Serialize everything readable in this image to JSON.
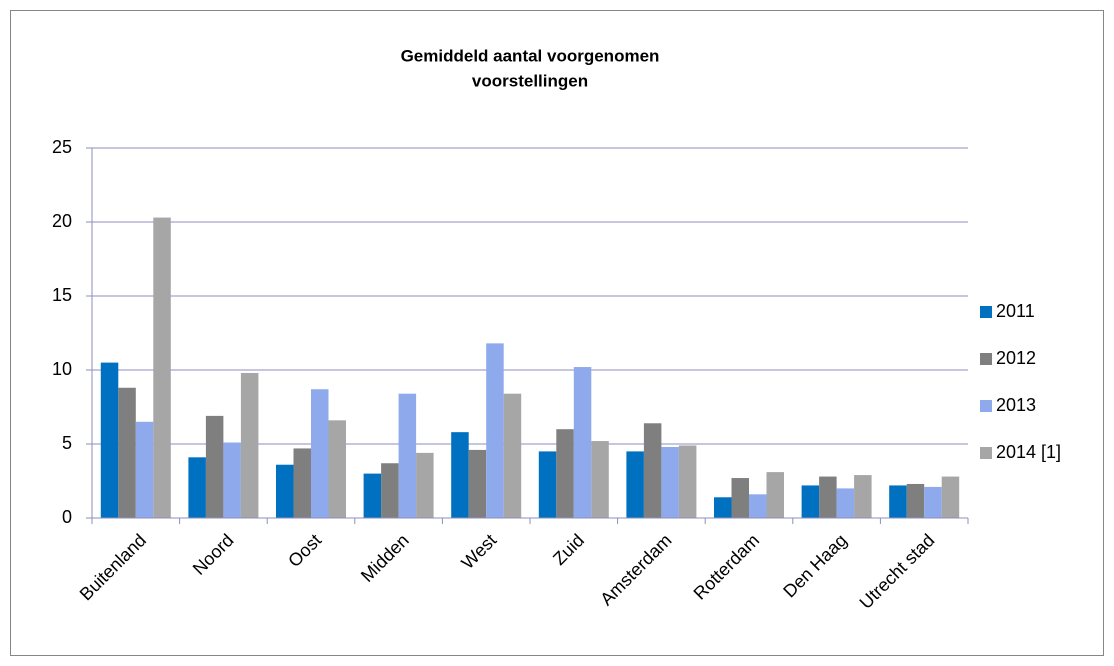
{
  "chart_data": {
    "type": "bar",
    "title": [
      "Gemiddeld aantal voorgenomen",
      "voorstellingen"
    ],
    "categories": [
      "Buitenland",
      "Noord",
      "Oost",
      "Midden",
      "West",
      "Zuid",
      "Amsterdam",
      "Rotterdam",
      "Den Haag",
      "Utrecht stad"
    ],
    "series": [
      {
        "name": "2011",
        "color": "#0070c0",
        "values": [
          10.5,
          4.1,
          3.6,
          3.0,
          5.8,
          4.5,
          4.5,
          1.4,
          2.2,
          2.2
        ]
      },
      {
        "name": "2012",
        "color": "#7f7f7f",
        "values": [
          8.8,
          6.9,
          4.7,
          3.7,
          4.6,
          6.0,
          6.4,
          2.7,
          2.8,
          2.3
        ]
      },
      {
        "name": "2013",
        "color": "#8eaaec",
        "values": [
          6.5,
          5.1,
          8.7,
          8.4,
          11.8,
          10.2,
          4.8,
          1.6,
          2.0,
          2.1
        ]
      },
      {
        "name": "2014 [1]",
        "color": "#a6a6a6",
        "values": [
          20.3,
          9.8,
          6.6,
          4.4,
          8.4,
          5.2,
          4.9,
          3.1,
          2.9,
          2.8
        ]
      }
    ],
    "ylim": [
      0,
      25
    ],
    "yticks": [
      0,
      5,
      10,
      15,
      20,
      25
    ],
    "grid": true,
    "legend": "right"
  }
}
